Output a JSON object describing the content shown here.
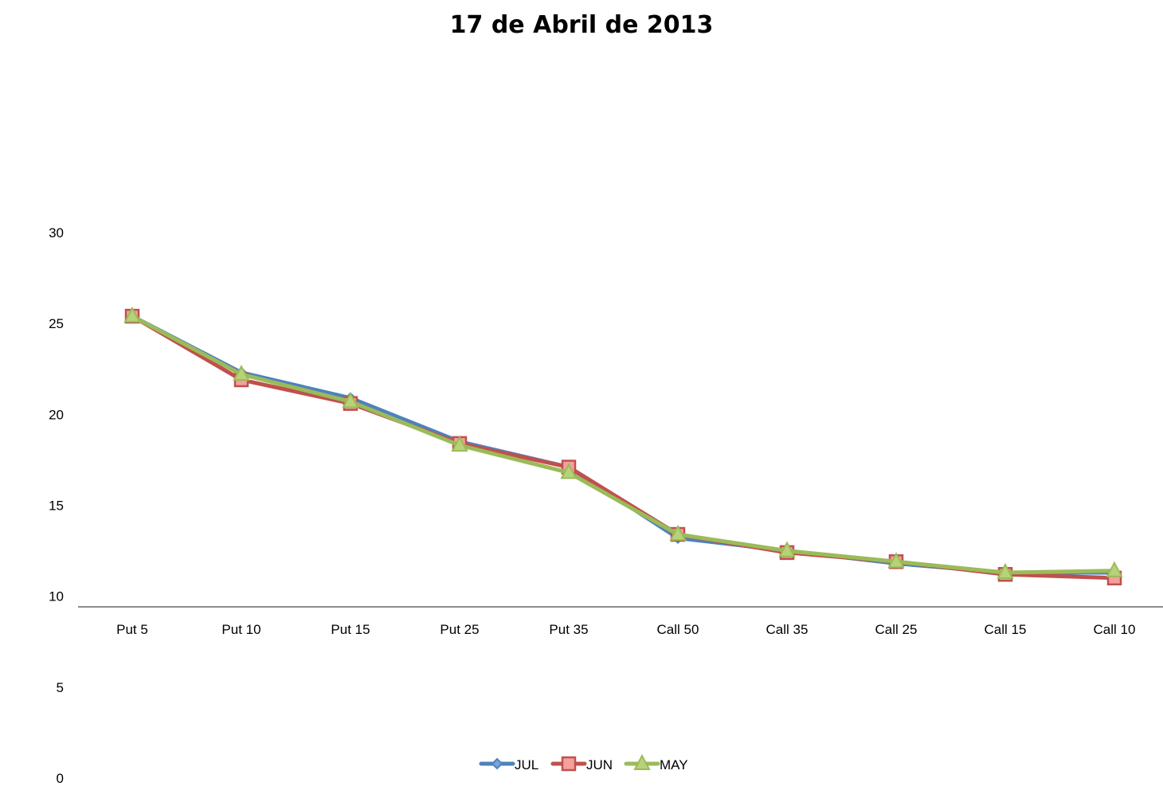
{
  "chart_data": {
    "type": "line",
    "title": "17 de Abril de 2013",
    "xlabel": "",
    "ylabel": "",
    "categories": [
      "Put 5",
      "Put 10",
      "Put 15",
      "Put 25",
      "Put 35",
      "Call 50",
      "Call 35",
      "Call 25",
      "Call 15",
      "Call 10"
    ],
    "yticks": [
      0,
      5,
      10,
      15,
      20,
      25,
      30
    ],
    "ylim": [
      0,
      30
    ],
    "grid": false,
    "legend_position": "bottom",
    "series": [
      {
        "name": "JUL",
        "color": "#4f81bd",
        "marker": "diamond",
        "values": [
          25.4,
          22.3,
          20.9,
          18.5,
          17.1,
          13.2,
          12.5,
          11.8,
          11.3,
          11.3
        ]
      },
      {
        "name": "JUN",
        "color": "#c0504d",
        "marker": "square",
        "values": [
          25.4,
          21.9,
          20.6,
          18.4,
          17.1,
          13.4,
          12.4,
          11.9,
          11.2,
          11.0
        ]
      },
      {
        "name": "MAY",
        "color": "#9bbb59",
        "marker": "triangle",
        "values": [
          25.4,
          22.2,
          20.7,
          18.3,
          16.8,
          13.4,
          12.5,
          11.9,
          11.3,
          11.4
        ]
      }
    ]
  }
}
